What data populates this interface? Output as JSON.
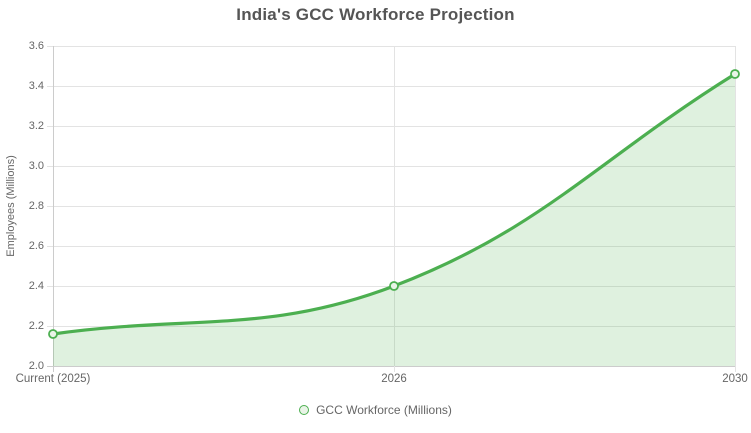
{
  "chart_data": {
    "type": "area",
    "title": "India's GCC Workforce Projection",
    "ylabel": "Employees (Millions)",
    "xlabel": "",
    "categories": [
      "Current (2025)",
      "2026",
      "2030"
    ],
    "series": [
      {
        "name": "GCC Workforce (Millions)",
        "values": [
          2.16,
          2.4,
          3.46
        ]
      }
    ],
    "ylim": [
      2.0,
      3.6
    ],
    "ytick_step": 0.2,
    "grid": true,
    "legend_position": "bottom",
    "line_tension": 0.4,
    "colors": {
      "line": "#4caf50",
      "area_fill": "rgba(76, 175, 80, 0.18)",
      "marker_fill": "#e9f4e7",
      "grid": "#e3e3e3",
      "axis_border": "#cccccc",
      "title_text": "#555555",
      "tick_text": "#666666",
      "axis_title_text": "#666666",
      "legend_text": "#666666",
      "background": "#ffffff"
    }
  }
}
